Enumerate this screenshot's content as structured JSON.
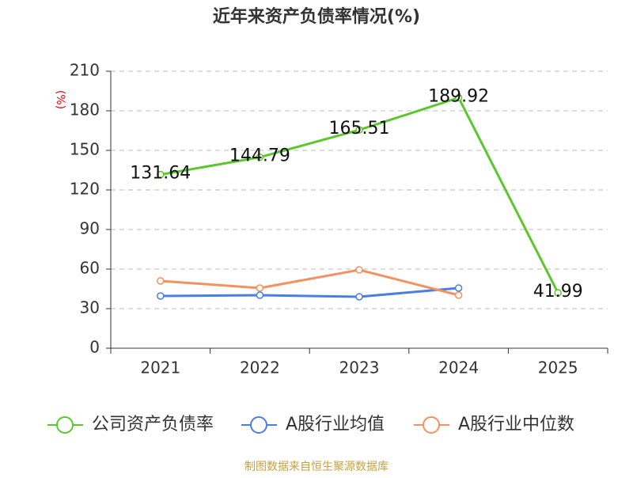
{
  "chart_data": {
    "type": "line",
    "title": "近年来资产负债率情况(%)",
    "y_label": "(%)",
    "categories": [
      "2021",
      "2022",
      "2023",
      "2024",
      "2025"
    ],
    "series": [
      {
        "name": "公司资产负债率",
        "color": "#5cc72d",
        "values": [
          131.64,
          144.79,
          165.51,
          189.92,
          41.99
        ]
      },
      {
        "name": "A股行业均值",
        "color": "#4a7fe0",
        "values": [
          39.6,
          40.2,
          39,
          45.6,
          null
        ]
      },
      {
        "name": "A股行业中位数",
        "color": "#f59060",
        "values": [
          51,
          45.6,
          59.4,
          40.2,
          null
        ]
      }
    ],
    "ylim": [
      0,
      210
    ],
    "yticks": [
      0,
      30,
      60,
      90,
      120,
      150,
      180,
      210
    ],
    "grid": true,
    "source": "制图数据来自恒生聚源数据库"
  }
}
